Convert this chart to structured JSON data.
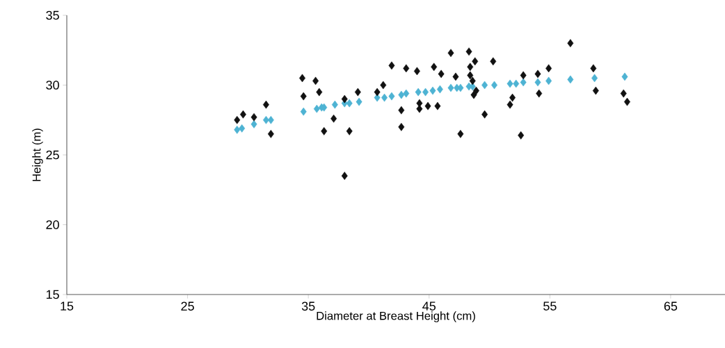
{
  "chart_data": {
    "type": "scatter",
    "xlabel": "Diameter at Breast Height (cm)",
    "ylabel": "Height (m)",
    "xlim": [
      15,
      69.5
    ],
    "ylim": [
      15,
      35
    ],
    "xticks": [
      15,
      25,
      35,
      45,
      55,
      65
    ],
    "yticks": [
      15,
      20,
      25,
      30,
      35
    ],
    "marker": "diamond",
    "series": [
      {
        "color": "#4eb3d3",
        "x": [
          29.1,
          29.5,
          30.5,
          31.5,
          31.9,
          34.6,
          35.7,
          36.1,
          36.3,
          37.2,
          38.0,
          38.4,
          39.2,
          40.7,
          41.3,
          41.9,
          42.7,
          43.1,
          44.1,
          44.7,
          45.3,
          45.9,
          46.8,
          47.3,
          47.6,
          48.3,
          48.6,
          49.6,
          50.4,
          51.7,
          52.2,
          52.8,
          54.0,
          54.9,
          56.7,
          58.7,
          61.2
        ],
        "values": [
          26.8,
          26.9,
          27.2,
          27.5,
          27.5,
          28.1,
          28.3,
          28.4,
          28.4,
          28.6,
          28.7,
          28.7,
          28.8,
          29.1,
          29.1,
          29.2,
          29.3,
          29.4,
          29.5,
          29.5,
          29.6,
          29.7,
          29.8,
          29.8,
          29.8,
          29.9,
          29.9,
          30.0,
          30.0,
          30.1,
          30.1,
          30.2,
          30.2,
          30.3,
          30.4,
          30.5,
          30.6
        ]
      },
      {
        "color": "#111111",
        "x": [
          29.1,
          29.6,
          30.5,
          31.5,
          31.9,
          34.5,
          35.6,
          34.6,
          35.9,
          37.1,
          36.3,
          38.4,
          38.0,
          38.0,
          39.1,
          40.7,
          41.2,
          41.9,
          43.1,
          44.0,
          45.4,
          46.0,
          46.8,
          48.3,
          48.8,
          50.3,
          47.2,
          48.4,
          48.4,
          48.6,
          48.7,
          48.9,
          42.7,
          44.2,
          44.2,
          44.9,
          45.7,
          42.7,
          49.6,
          47.6,
          51.9,
          51.7,
          52.8,
          52.6,
          56.7,
          54.0,
          54.9,
          58.6,
          54.1,
          58.8,
          61.1,
          61.4
        ],
        "values": [
          27.5,
          27.9,
          27.7,
          28.6,
          26.5,
          30.5,
          30.3,
          29.2,
          29.5,
          27.6,
          26.7,
          26.7,
          23.5,
          29.0,
          29.5,
          29.5,
          30.0,
          31.4,
          31.2,
          31.0,
          31.3,
          30.8,
          32.3,
          32.4,
          31.7,
          31.7,
          30.6,
          31.3,
          30.7,
          30.3,
          29.3,
          29.6,
          28.2,
          28.7,
          28.3,
          28.5,
          28.5,
          27.0,
          27.9,
          26.5,
          29.1,
          28.6,
          30.7,
          26.4,
          33.0,
          30.8,
          31.2,
          31.2,
          29.4,
          29.6,
          29.4,
          28.8
        ]
      }
    ]
  }
}
